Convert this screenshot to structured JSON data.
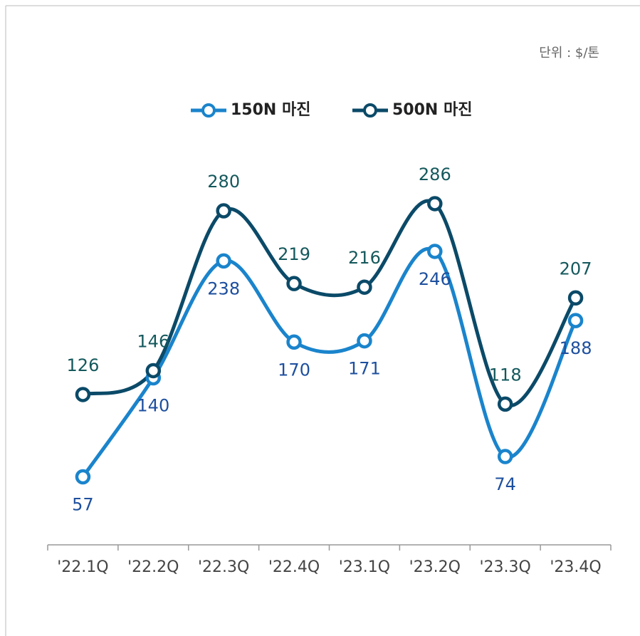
{
  "chart_data": {
    "type": "line",
    "unit": "단위 : $/톤",
    "categories": [
      "'22.1Q",
      "'22.2Q",
      "'22.3Q",
      "'22.4Q",
      "'23.1Q",
      "'23.2Q",
      "'23.3Q",
      "'23.4Q"
    ],
    "series": [
      {
        "name": "150N 마진",
        "color": "#1a84cc",
        "values": [
          57,
          140,
          238,
          170,
          171,
          246,
          74,
          188
        ]
      },
      {
        "name": "500N 마진",
        "color": "#0b4a68",
        "values": [
          126,
          146,
          280,
          219,
          216,
          286,
          118,
          207
        ]
      }
    ],
    "smooth": true
  }
}
